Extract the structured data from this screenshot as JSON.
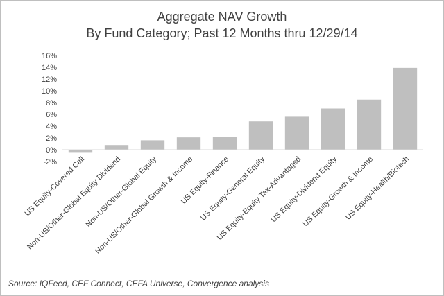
{
  "chart_data": {
    "type": "bar",
    "title": [
      "Aggregate NAV Growth",
      "By Fund Category; Past 12 Months thru 12/29/14"
    ],
    "categories": [
      "US Equity-Covered Call",
      "Non-US/Other-Global Equity Dividend",
      "Non-US/Other-Global Equity",
      "Non-US/Other-Global Growth & Income",
      "US Equity-Finance",
      "US Equity-General Equity",
      "US Equity-Equity Tax-Advantaged",
      "US Equity-Dividend Equity",
      "US Equity-Growth & Income",
      "US Equity-Health/Biotech"
    ],
    "values": [
      -0.4,
      0.8,
      1.6,
      2.1,
      2.2,
      4.8,
      5.6,
      7.0,
      8.5,
      13.9
    ],
    "ylim": [
      -2,
      16
    ],
    "yticks": [
      -2,
      0,
      2,
      4,
      6,
      8,
      10,
      12,
      14,
      16
    ],
    "ytick_suffix": "%",
    "bar_color": "#bfbfbf",
    "grid": false,
    "legend": "none"
  },
  "source": "Source:  IQFeed, CEF Connect, CEFA Universe, Convergence analysis"
}
